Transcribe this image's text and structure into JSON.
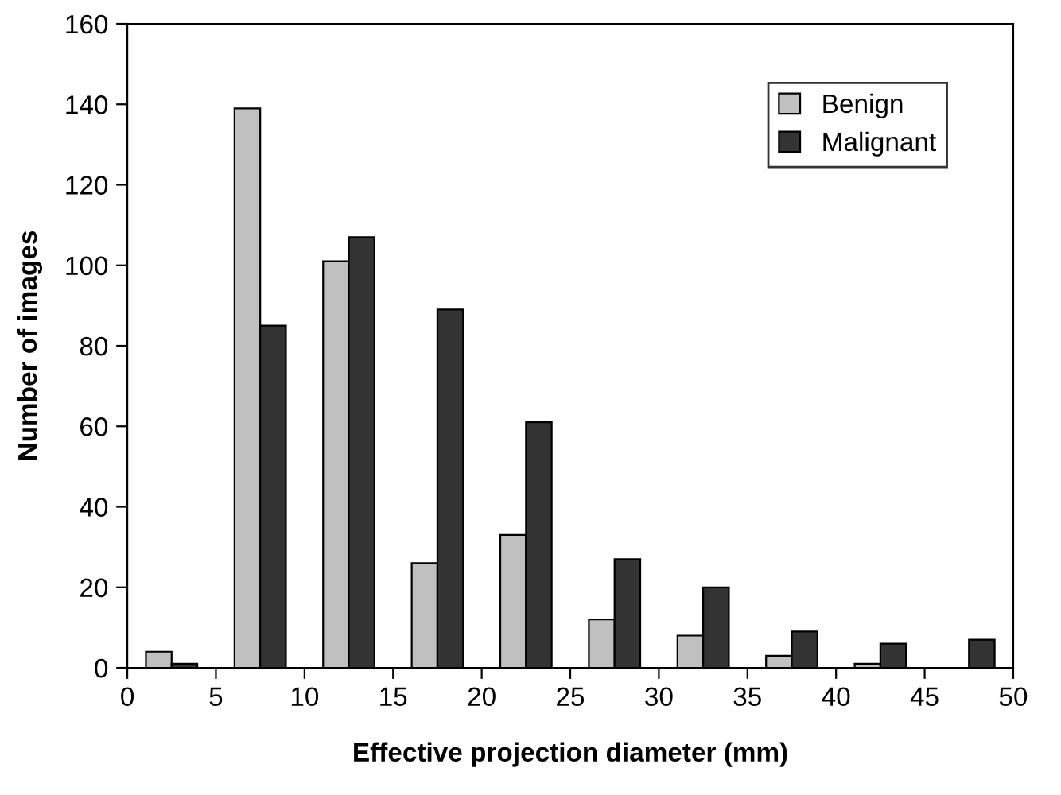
{
  "chart_data": {
    "type": "bar",
    "xlabel": "Effective projection diameter (mm)",
    "ylabel": "Number of images",
    "x": [
      2.5,
      7.5,
      12.5,
      17.5,
      22.5,
      27.5,
      32.5,
      37.5,
      42.5,
      47.5
    ],
    "series": [
      {
        "name": "Benign",
        "color": "#c0c0c0",
        "values": [
          4,
          139,
          101,
          26,
          33,
          12,
          8,
          3,
          1,
          null
        ]
      },
      {
        "name": "Malignant",
        "color": "#333333",
        "values": [
          1,
          85,
          107,
          89,
          61,
          27,
          20,
          9,
          6,
          7
        ]
      }
    ],
    "xlim": [
      0,
      50
    ],
    "xticks": [
      0,
      5,
      10,
      15,
      20,
      25,
      30,
      35,
      40,
      45,
      50
    ],
    "ylim": [
      0,
      160
    ],
    "yticks": [
      0,
      20,
      40,
      60,
      80,
      100,
      120,
      140,
      160
    ],
    "grid": false,
    "legend": "top right"
  }
}
